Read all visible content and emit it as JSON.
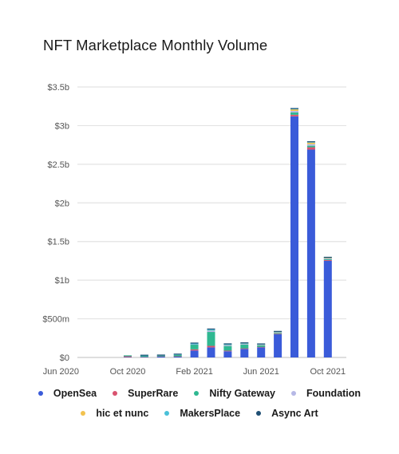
{
  "chart_data": {
    "type": "bar",
    "stacked": true,
    "title": "NFT Marketplace Monthly Volume",
    "xlabel": "",
    "ylabel": "",
    "ylim": [
      0,
      3.5
    ],
    "y_unit": "billion USD",
    "yticks": [
      {
        "value": 0,
        "label": "$0"
      },
      {
        "value": 0.5,
        "label": "$500m"
      },
      {
        "value": 1,
        "label": "$1b"
      },
      {
        "value": 1.5,
        "label": "$1.5b"
      },
      {
        "value": 2,
        "label": "$2b"
      },
      {
        "value": 2.5,
        "label": "$2.5b"
      },
      {
        "value": 3,
        "label": "$3b"
      },
      {
        "value": 3.5,
        "label": "$3.5b"
      }
    ],
    "categories": [
      "May 2020",
      "Jun 2020",
      "Jul 2020",
      "Aug 2020",
      "Sep 2020",
      "Oct 2020",
      "Nov 2020",
      "Dec 2020",
      "Jan 2021",
      "Feb 2021",
      "Mar 2021",
      "Apr 2021",
      "May 2021",
      "Jun 2021",
      "Jul 2021",
      "Aug 2021",
      "Sep 2021",
      "Oct 2021",
      "Nov 2021"
    ],
    "xtick_labels": [
      {
        "category": "Jun 2020",
        "label": "Jun 2020"
      },
      {
        "category": "Oct 2020",
        "label": "Oct 2020"
      },
      {
        "category": "Feb 2021",
        "label": "Feb 2021"
      },
      {
        "category": "Jun 2021",
        "label": "Jun 2021"
      },
      {
        "category": "Oct 2021",
        "label": "Oct 2021"
      }
    ],
    "grid": true,
    "legend_position": "bottom",
    "series": [
      {
        "name": "OpenSea",
        "color": "#3a5bd9",
        "values": [
          0.0,
          0.0,
          0.0,
          0.0,
          0.0,
          0.005,
          0.005,
          0.01,
          0.01,
          0.09,
          0.13,
          0.08,
          0.11,
          0.13,
          0.3,
          3.12,
          2.69,
          1.25,
          0.0
        ]
      },
      {
        "name": "SuperRare",
        "color": "#d9536f",
        "values": [
          0.0,
          0.0,
          0.0,
          0.0,
          0.0,
          0.01,
          0.003,
          0.004,
          0.005,
          0.015,
          0.02,
          0.008,
          0.007,
          0.006,
          0.006,
          0.02,
          0.03,
          0.01,
          0.0
        ]
      },
      {
        "name": "Nifty Gateway",
        "color": "#2fb891",
        "values": [
          0.0,
          0.0,
          0.0,
          0.0,
          0.0,
          0.003,
          0.012,
          0.008,
          0.018,
          0.06,
          0.18,
          0.06,
          0.05,
          0.02,
          0.01,
          0.03,
          0.02,
          0.01,
          0.0
        ]
      },
      {
        "name": "Foundation",
        "color": "#b6b8e6",
        "values": [
          0.0,
          0.0,
          0.0,
          0.0,
          0.0,
          0.0,
          0.0,
          0.0,
          0.0,
          0.005,
          0.015,
          0.01,
          0.008,
          0.006,
          0.008,
          0.02,
          0.02,
          0.01,
          0.0
        ]
      },
      {
        "name": "hic et nunc",
        "color": "#f2c24f",
        "values": [
          0.0,
          0.0,
          0.0,
          0.0,
          0.0,
          0.0,
          0.0,
          0.0,
          0.0,
          0.0,
          0.002,
          0.002,
          0.002,
          0.002,
          0.003,
          0.02,
          0.02,
          0.006,
          0.0
        ]
      },
      {
        "name": "MakersPlace",
        "color": "#49c0d8",
        "values": [
          0.0,
          0.0,
          0.0,
          0.0,
          0.0,
          0.0,
          0.003,
          0.003,
          0.004,
          0.01,
          0.015,
          0.01,
          0.006,
          0.005,
          0.004,
          0.005,
          0.005,
          0.004,
          0.0
        ]
      },
      {
        "name": "Async Art",
        "color": "#1f4f74",
        "values": [
          0.0,
          0.0,
          0.0,
          0.0,
          0.0,
          0.0,
          0.001,
          0.001,
          0.001,
          0.002,
          0.002,
          0.001,
          0.001,
          0.001,
          0.001,
          0.002,
          0.002,
          0.001,
          0.0
        ]
      }
    ]
  }
}
